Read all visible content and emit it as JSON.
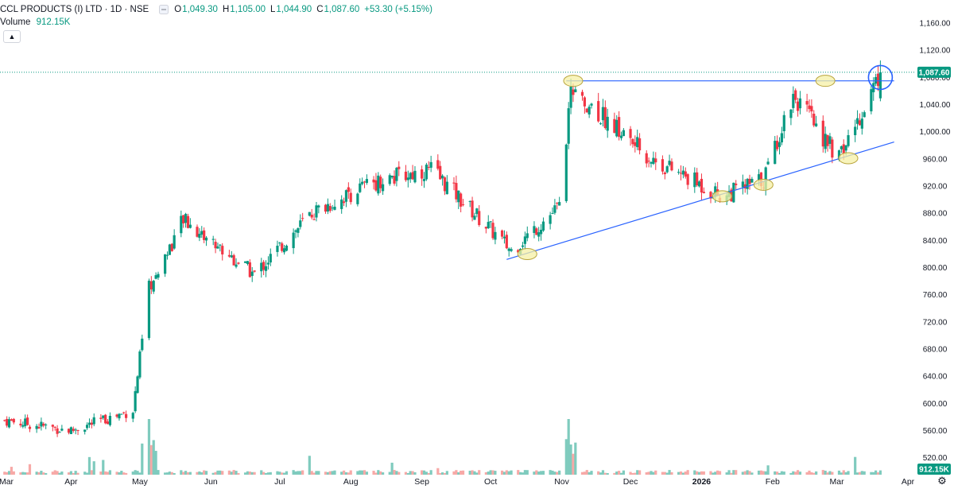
{
  "legend": {
    "symbol": "CCL PRODUCTS (I) LTD · 1D · NSE",
    "open_label": "O",
    "open": "1,049.30",
    "high_label": "H",
    "high": "1,105.00",
    "low_label": "L",
    "low": "1,044.90",
    "close_label": "C",
    "close": "1,087.60",
    "change": "+53.30 (+5.15%)",
    "volume_label": "Volume",
    "volume": "912.15K"
  },
  "collapse_icon": "chevron-up-icon",
  "settings_icon": "gear-icon",
  "colors": {
    "up": "#089981",
    "down": "#f23645",
    "trend": "#2962ff",
    "highlight": "#f5f0a6",
    "grid": "#f0f3fa"
  },
  "chart_data": {
    "type": "candlestick",
    "y_ticks": [
      "520.00",
      "560.00",
      "600.00",
      "640.00",
      "680.00",
      "720.00",
      "760.00",
      "800.00",
      "840.00",
      "880.00",
      "920.00",
      "960.00",
      "1,000.00",
      "1,040.00",
      "1,080.00",
      "1,120.00",
      "1,160.00"
    ],
    "y_tick_values": [
      520,
      560,
      600,
      640,
      680,
      720,
      760,
      800,
      840,
      880,
      920,
      960,
      1000,
      1040,
      1080,
      1120,
      1160
    ],
    "ylim": [
      495,
      1180
    ],
    "x_labels": [
      "Mar",
      "Apr",
      "May",
      "Jun",
      "Jul",
      "Aug",
      "Sep",
      "Oct",
      "Nov",
      "Dec",
      "2026",
      "Feb",
      "Mar",
      "Apr"
    ],
    "x_label_positions": [
      "2025-03",
      "2025-04",
      "2025-05",
      "2025-06",
      "2025-07",
      "2025-08",
      "2025-09",
      "2025-10",
      "2025-11",
      "2025-12",
      "2026-01",
      "2026-02",
      "2026-03",
      "2026-04"
    ],
    "last_price_label": "1,087.60",
    "last_price": 1087.6,
    "volume_label": "912.15K",
    "key_closes": [
      {
        "date": "2025-03-03",
        "close": 575
      },
      {
        "date": "2025-04-01",
        "close": 560
      },
      {
        "date": "2025-04-28",
        "close": 590
      },
      {
        "date": "2025-05-05",
        "close": 770
      },
      {
        "date": "2025-05-20",
        "close": 870
      },
      {
        "date": "2025-06-20",
        "close": 790
      },
      {
        "date": "2025-07-15",
        "close": 880
      },
      {
        "date": "2025-08-10",
        "close": 925
      },
      {
        "date": "2025-09-05",
        "close": 945
      },
      {
        "date": "2025-10-10",
        "close": 825
      },
      {
        "date": "2025-10-31",
        "close": 890
      },
      {
        "date": "2025-11-05",
        "close": 1065
      },
      {
        "date": "2025-12-10",
        "close": 960
      },
      {
        "date": "2026-01-10",
        "close": 905
      },
      {
        "date": "2026-01-28",
        "close": 930
      },
      {
        "date": "2026-02-10",
        "close": 1055
      },
      {
        "date": "2026-03-02",
        "close": 960
      },
      {
        "date": "2026-03-20",
        "close": 1087.6
      }
    ],
    "resistance_level": 1075,
    "support_line": [
      {
        "date": "2025-10-08",
        "value": 812
      },
      {
        "date": "2026-03-26",
        "value": 985
      }
    ],
    "grid": false,
    "volume_spikes": [
      {
        "date": "2025-05-05",
        "volume": "high"
      },
      {
        "date": "2025-11-04",
        "volume": "high"
      }
    ]
  }
}
